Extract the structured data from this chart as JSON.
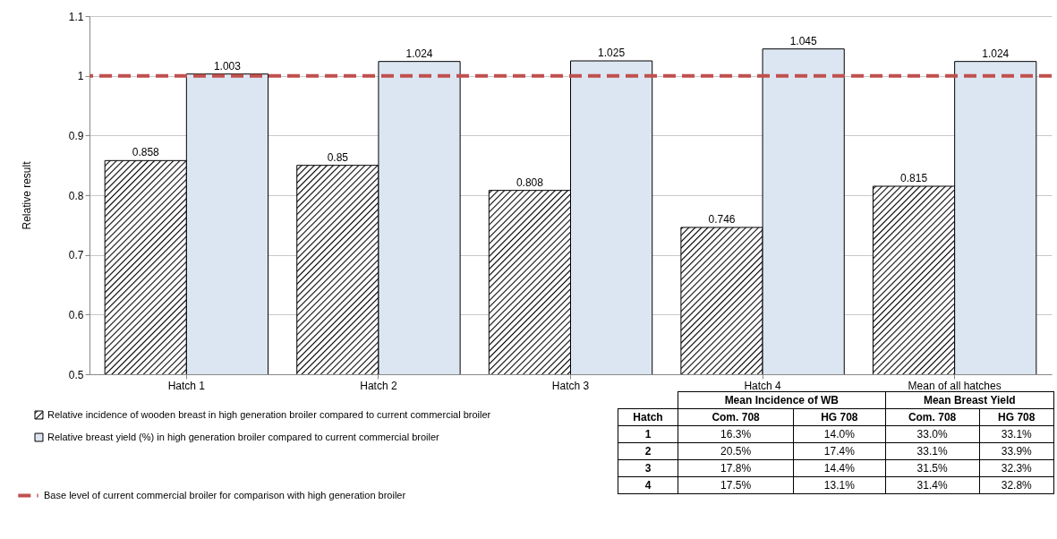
{
  "chart_data": {
    "type": "bar",
    "ylabel": "Relative result",
    "categories": [
      "Hatch 1",
      "Hatch 2",
      "Hatch 3",
      "Hatch 4",
      "Mean of all hatches"
    ],
    "series": [
      {
        "name": "Relative incidence of wooden breast in high generation broiler compared to current commercial broiler",
        "color": "#000000",
        "values": [
          0.858,
          0.85,
          0.808,
          0.746,
          0.815
        ]
      },
      {
        "name": "Relative breast yield (%) in high generation broiler compared to current commercial broiler",
        "color": "#dce6f2",
        "values": [
          1.003,
          1.024,
          1.025,
          1.045,
          1.024
        ]
      }
    ],
    "ylim": [
      0.5,
      1.1
    ],
    "yticks": [
      0.5,
      0.6,
      0.7,
      0.8,
      0.9,
      1,
      1.1
    ],
    "grid": "y",
    "data_labels": true,
    "legend": "bottom left",
    "ref_lines": [
      {
        "axis": "y",
        "value": 1,
        "label": "Base level of current commercial broiler for comparison with high generation broiler",
        "color": "#c0504d",
        "line_style": "dashed"
      }
    ],
    "annotations": [
      "Mean Incidence of WB",
      "Mean Breast Yield",
      "Hatch",
      "Com. 708",
      "HG 708",
      "Com. 708",
      "HG 708",
      "1",
      "16.3%",
      "14.0%",
      "33.0%",
      "33.1%",
      "2",
      "20.5%",
      "17.4%",
      "33.1%",
      "33.9%",
      "3",
      "17.8%",
      "14.4%",
      "31.5%",
      "32.3%",
      "4",
      "17.5%",
      "13.1%",
      "31.4%",
      "32.8%"
    ]
  }
}
